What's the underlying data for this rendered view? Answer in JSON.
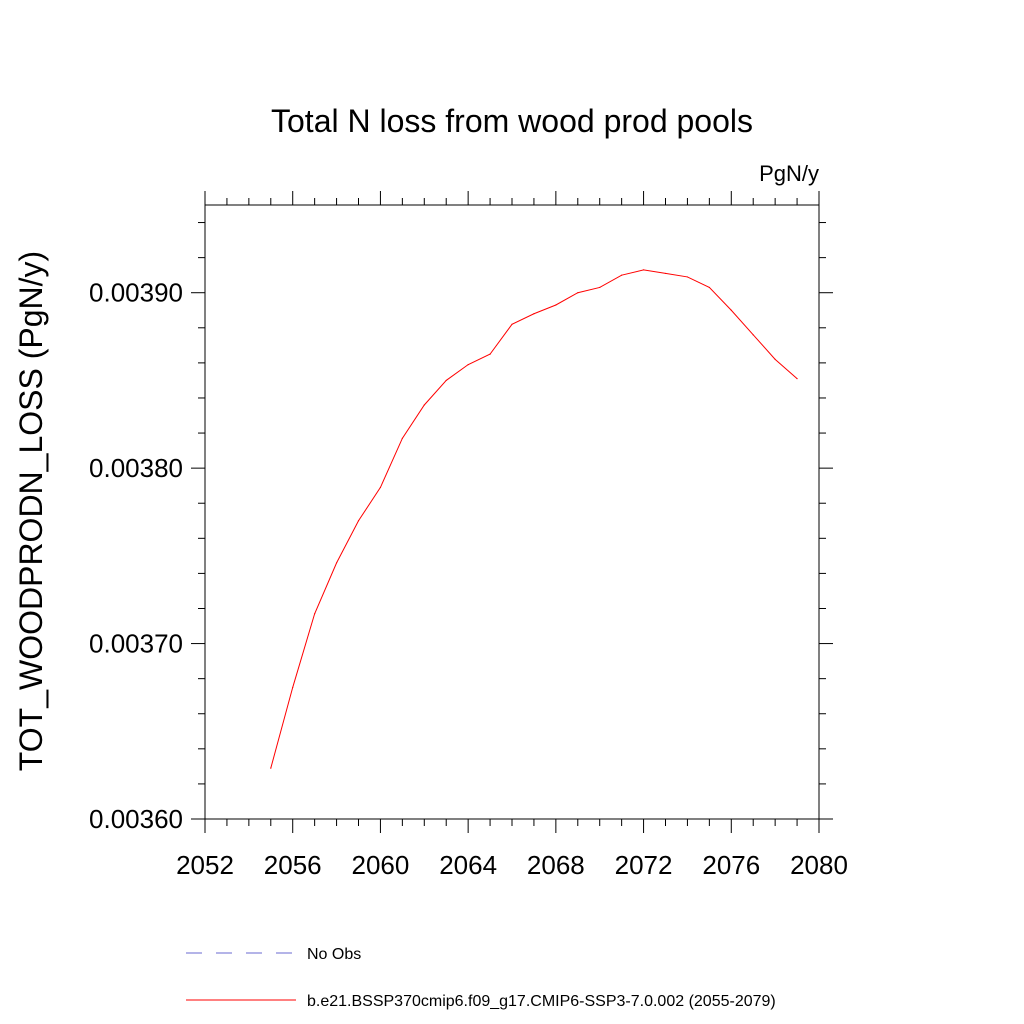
{
  "chart_data": {
    "type": "line",
    "title": "Total N loss from wood prod pools",
    "units_label": "PgN/y",
    "xlabel": "",
    "ylabel": "TOT_WOODPRODN_LOSS  (PgN/y)",
    "xlim": [
      2052,
      2080
    ],
    "ylim": [
      0.0036,
      0.00395
    ],
    "x_ticks": [
      2052,
      2056,
      2060,
      2064,
      2068,
      2072,
      2076,
      2080
    ],
    "x_tick_labels": [
      "2052",
      "2056",
      "2060",
      "2064",
      "2068",
      "2072",
      "2076",
      "2080"
    ],
    "y_ticks": [
      0.0036,
      0.0037,
      0.0038,
      0.0039
    ],
    "y_tick_labels": [
      "0.00360",
      "0.00370",
      "0.00380",
      "0.00390"
    ],
    "grid": false,
    "legend_position": "bottom",
    "series": [
      {
        "name": "b.e21.BSSP370cmip6.f09_g17.CMIP6-SSP3-7.0.002 (2055-2079)",
        "color": "#ff0000",
        "style": "solid",
        "x": [
          2055,
          2056,
          2057,
          2058,
          2059,
          2060,
          2061,
          2062,
          2063,
          2064,
          2065,
          2066,
          2067,
          2068,
          2069,
          2070,
          2071,
          2072,
          2073,
          2074,
          2075,
          2076,
          2077,
          2078,
          2079
        ],
        "y": [
          0.003629,
          0.003675,
          0.003717,
          0.003746,
          0.00377,
          0.003789,
          0.003817,
          0.003836,
          0.00385,
          0.003859,
          0.003865,
          0.003882,
          0.003888,
          0.003893,
          0.0039,
          0.003903,
          0.00391,
          0.003913,
          0.003911,
          0.003909,
          0.003903,
          0.00389,
          0.003876,
          0.003862,
          0.003851
        ]
      }
    ],
    "legend": [
      {
        "label": "No Obs",
        "color": "#6a6ad0",
        "style": "dashed"
      },
      {
        "label": "b.e21.BSSP370cmip6.f09_g17.CMIP6-SSP3-7.0.002 (2055-2079)",
        "color": "#ff0000",
        "style": "solid"
      }
    ]
  }
}
